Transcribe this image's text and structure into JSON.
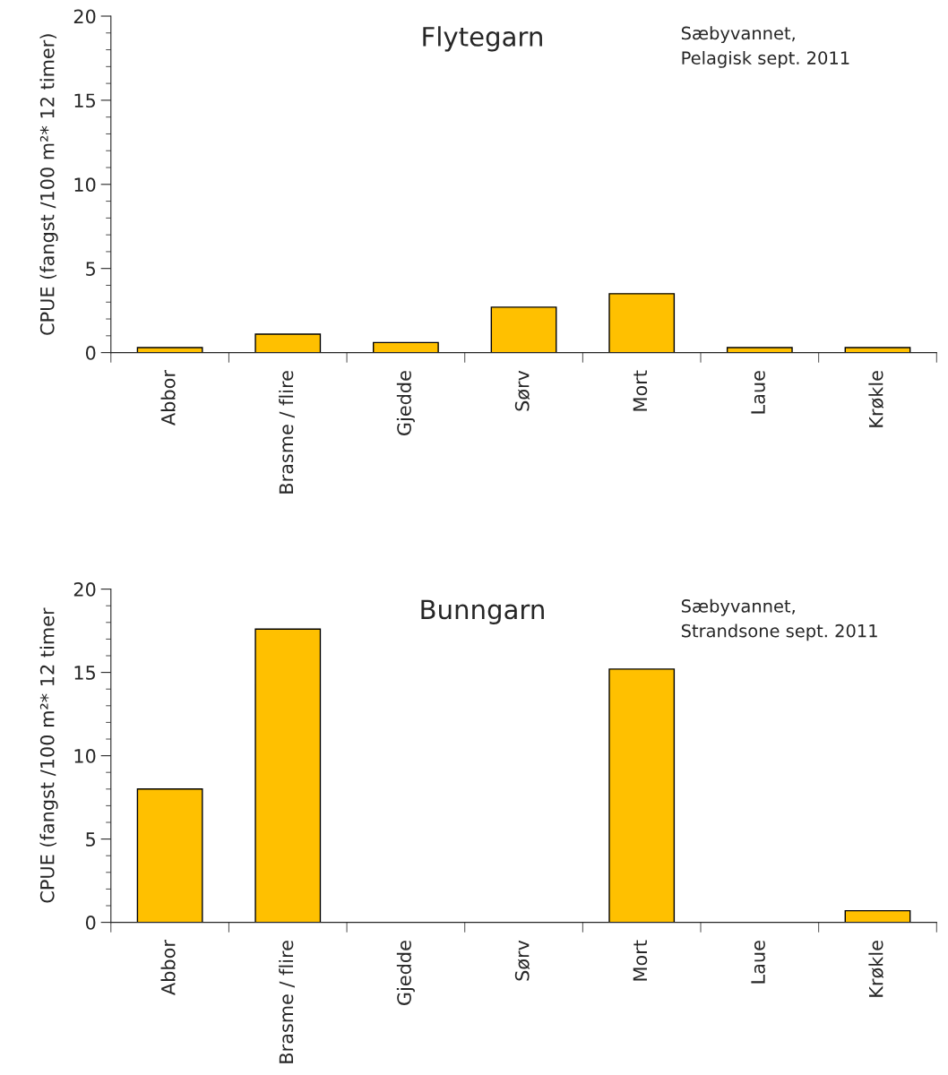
{
  "chart_data": [
    {
      "type": "bar",
      "title": "Flytegarn",
      "ylabel": "CPUE (fangst /100 m²* 12 timer)",
      "annotations": [
        "Sæbyvannet,\nPelagisk sept. 2011"
      ],
      "categories": [
        "Abbor",
        "Brasme / flire",
        "Gjedde",
        "Sørv",
        "Mort",
        "Laue",
        "Krøkle"
      ],
      "values": [
        0.3,
        1.1,
        0.6,
        2.7,
        3.5,
        0.3,
        0.3
      ],
      "color": "#ffc000",
      "ylim": [
        0,
        20
      ],
      "yticks": [
        0,
        5,
        10,
        15,
        20
      ],
      "grid": false,
      "legend": false
    },
    {
      "type": "bar",
      "title": "Bunngarn",
      "ylabel": "CPUE (fangst /100 m²* 12 timer",
      "annotations": [
        "Sæbyvannet,\nStrandsone sept. 2011"
      ],
      "categories": [
        "Abbor",
        "Brasme / flire",
        "Gjedde",
        "Sørv",
        "Mort",
        "Laue",
        "Krøkle"
      ],
      "values": [
        8.0,
        17.6,
        0,
        0,
        15.2,
        0,
        0.7
      ],
      "color": "#ffc000",
      "ylim": [
        0,
        20
      ],
      "yticks": [
        0,
        5,
        10,
        15,
        20
      ],
      "grid": false,
      "legend": false
    }
  ]
}
